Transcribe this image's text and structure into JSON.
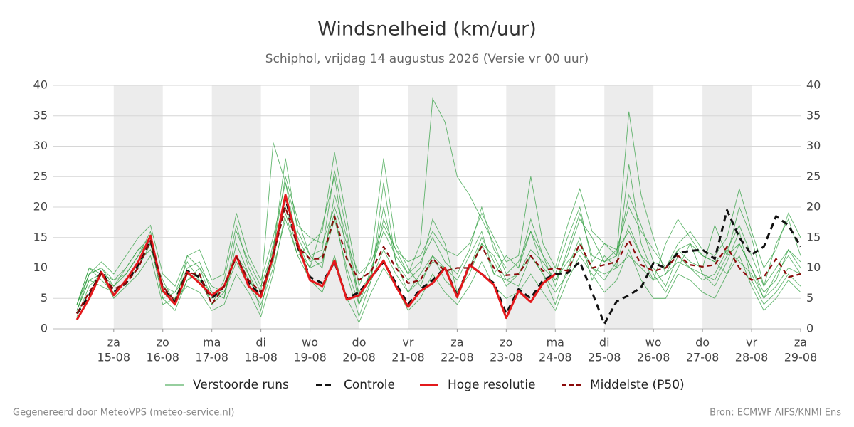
{
  "chart_data": {
    "type": "line",
    "title": "Windsnelheid (km/uur)",
    "subtitle": "Schiphol, vrijdag 14 augustus 2026 (Versie vr 00 uur)",
    "footer_left": "Gegenereerd door MeteoVPS (meteo-service.nl)",
    "footer_right": "Bron: ECMWF AIFS/KNMI Ens",
    "x": [
      14.25,
      14.5,
      14.75,
      15,
      15.25,
      15.5,
      15.75,
      16,
      16.25,
      16.5,
      16.75,
      17,
      17.25,
      17.5,
      17.75,
      18,
      18.25,
      18.5,
      18.75,
      19,
      19.25,
      19.5,
      19.75,
      20,
      20.25,
      20.5,
      20.75,
      21,
      21.25,
      21.5,
      21.75,
      22,
      22.25,
      22.5,
      22.75,
      23,
      23.25,
      23.5,
      23.75,
      24,
      24.25,
      24.5,
      24.75,
      25,
      25.25,
      25.5,
      25.75,
      26,
      26.25,
      26.5,
      26.75,
      27,
      27.25,
      27.5,
      27.75,
      28,
      28.25,
      28.5,
      28.75,
      29
    ],
    "xlim": [
      13.77,
      29
    ],
    "xticks": [
      {
        "value": 15,
        "label": "15-08",
        "weekday": "za"
      },
      {
        "value": 16,
        "label": "16-08",
        "weekday": "zo"
      },
      {
        "value": 17,
        "label": "17-08",
        "weekday": "ma"
      },
      {
        "value": 18,
        "label": "18-08",
        "weekday": "di"
      },
      {
        "value": 19,
        "label": "19-08",
        "weekday": "wo"
      },
      {
        "value": 20,
        "label": "20-08",
        "weekday": "do"
      },
      {
        "value": 21,
        "label": "21-08",
        "weekday": "vr"
      },
      {
        "value": 22,
        "label": "22-08",
        "weekday": "za"
      },
      {
        "value": 23,
        "label": "23-08",
        "weekday": "zo"
      },
      {
        "value": 24,
        "label": "24-08",
        "weekday": "ma"
      },
      {
        "value": 25,
        "label": "25-08",
        "weekday": "di"
      },
      {
        "value": 26,
        "label": "26-08",
        "weekday": "wo"
      },
      {
        "value": 27,
        "label": "27-08",
        "weekday": "do"
      },
      {
        "value": 28,
        "label": "28-08",
        "weekday": "vr"
      },
      {
        "value": 29,
        "label": "29-08",
        "weekday": "za"
      }
    ],
    "ylim": [
      0,
      40
    ],
    "yticks": [
      0,
      5,
      10,
      15,
      20,
      25,
      30,
      35,
      40
    ],
    "grid": true,
    "series": [
      {
        "name": "Verstoorde runs",
        "color": "#2e9e3e",
        "members": [
          [
            4,
            9,
            10,
            8,
            9,
            12,
            16,
            6,
            5,
            10,
            11,
            6,
            5,
            14,
            9,
            3,
            13,
            28,
            16,
            12,
            10,
            22,
            15,
            4,
            10,
            16,
            12,
            9,
            14,
            37.8,
            34,
            25,
            22,
            18,
            14,
            9,
            11,
            16,
            10,
            8,
            12,
            18,
            15,
            11,
            13,
            16,
            12,
            8,
            14,
            18,
            15,
            12,
            11,
            9,
            14,
            10,
            6,
            8,
            13,
            10
          ],
          [
            3,
            8,
            9,
            7,
            10,
            13,
            14,
            5,
            6,
            11,
            8,
            4,
            8,
            17,
            10,
            6,
            30.6,
            24,
            14,
            10,
            17,
            25,
            12,
            6,
            9,
            20,
            11,
            6,
            9,
            12,
            10,
            8,
            12,
            16,
            9,
            12,
            10,
            18,
            12,
            9,
            15,
            20,
            11,
            14,
            12,
            35.7,
            22,
            15,
            9,
            13,
            11,
            10,
            17,
            12,
            20,
            15,
            7,
            14,
            18,
            12
          ],
          [
            4,
            10,
            8,
            6,
            8,
            11,
            13,
            8,
            4,
            8,
            10,
            7,
            6,
            11,
            7,
            4,
            10,
            18,
            12,
            14,
            16,
            29,
            18,
            7,
            12,
            28,
            14,
            10,
            7,
            12,
            8,
            6,
            9,
            14,
            12,
            8,
            7,
            12,
            9,
            4,
            10,
            15,
            8,
            12,
            10,
            27,
            14,
            9,
            6,
            10,
            14,
            9,
            7,
            11,
            16,
            8,
            4,
            6,
            9,
            7
          ],
          [
            2,
            7,
            9,
            5,
            7,
            9,
            12,
            4,
            5,
            7,
            6,
            3,
            4,
            9,
            6,
            2,
            9,
            19,
            12,
            8,
            6,
            12,
            5,
            1,
            6,
            10,
            7,
            3,
            5,
            9,
            6,
            4,
            7,
            11,
            7,
            5,
            6,
            9,
            6,
            3,
            8,
            12,
            9,
            6,
            8,
            13,
            8,
            5,
            5,
            9,
            8,
            6,
            5,
            9,
            12,
            7,
            3,
            5,
            8,
            6
          ],
          [
            4,
            9,
            11,
            9,
            12,
            15,
            17,
            9,
            7,
            12,
            13,
            8,
            9,
            19,
            12,
            8,
            15,
            24,
            17,
            15,
            14,
            20,
            14,
            9,
            11,
            17,
            13,
            11,
            12,
            16,
            13,
            12,
            14,
            19,
            15,
            11,
            12,
            25,
            14,
            10,
            17,
            23,
            16,
            14,
            13,
            20,
            16,
            13,
            10,
            14,
            16,
            13,
            12,
            15,
            23,
            16,
            10,
            13,
            19,
            15
          ],
          [
            3,
            9,
            10,
            7,
            9,
            12,
            15,
            6,
            4,
            12,
            10,
            5,
            7,
            12,
            9,
            5,
            11,
            22,
            15,
            11,
            12,
            19,
            9,
            2,
            8,
            24,
            11,
            8,
            10,
            18,
            14,
            6,
            10,
            15,
            11,
            7,
            9,
            13,
            11,
            8,
            11,
            13,
            10,
            8,
            11,
            17,
            12,
            10,
            7,
            12,
            10,
            8,
            9,
            13,
            11,
            9,
            5,
            9,
            12,
            9
          ],
          [
            3,
            8,
            7,
            6,
            8,
            10,
            14,
            5,
            3,
            8,
            9,
            4,
            6,
            12,
            8,
            5,
            14,
            20,
            13,
            10,
            11,
            18,
            10,
            4,
            8,
            13,
            9,
            6,
            8,
            11,
            10,
            5,
            10,
            14,
            9,
            8,
            9,
            12,
            9,
            6,
            9,
            14,
            10,
            9,
            10,
            12,
            10,
            8,
            9,
            11,
            10,
            9,
            8,
            12,
            14,
            10,
            5,
            7,
            10,
            9
          ],
          [
            4,
            10,
            9,
            8,
            10,
            13,
            15,
            7,
            6,
            9,
            8,
            6,
            5,
            16,
            11,
            7,
            13,
            25,
            18,
            12,
            13,
            26,
            16,
            5,
            9,
            18,
            13,
            9,
            11,
            15,
            11,
            9,
            13,
            20,
            13,
            10,
            10,
            16,
            12,
            7,
            13,
            19,
            12,
            11,
            12,
            22,
            17,
            11,
            10,
            13,
            14,
            12,
            11,
            13,
            17,
            12,
            7,
            10,
            13,
            11
          ]
        ]
      },
      {
        "name": "Controle",
        "color": "#111111",
        "dashed": true,
        "values": [
          2.5,
          5.5,
          9.5,
          6,
          7.5,
          10.5,
          14.5,
          6.5,
          4.5,
          9.5,
          8.5,
          5,
          7,
          12,
          7.5,
          5.5,
          12,
          21.5,
          13.5,
          8.5,
          7.5,
          11,
          5,
          6,
          8.5,
          11,
          7.5,
          4,
          6.5,
          8,
          10,
          5.5,
          10.5,
          9,
          7.5,
          2.5,
          6.5,
          5,
          8,
          9,
          9.2,
          11,
          6,
          0.8,
          4.5,
          5.5,
          6.8,
          10.8,
          10,
          12.5,
          12.8,
          13,
          11.5,
          19.5,
          15,
          12.2,
          13.5,
          18.5,
          17,
          13.5
        ]
      },
      {
        "name": "Hoge resolutie",
        "color": "#e3191c",
        "values": [
          1.5,
          5,
          9.3,
          5.5,
          8,
          11,
          15.3,
          6.3,
          4,
          9.3,
          7.5,
          5.5,
          7,
          12,
          7,
          5.2,
          12,
          22,
          14,
          8,
          7,
          11.2,
          4.8,
          5.5,
          8.5,
          11.2,
          7,
          3.6,
          6.2,
          7.5,
          10,
          5.2,
          10.5,
          9,
          7.2,
          1.8,
          6.2,
          4.4,
          7.5,
          9,
          null,
          null,
          null,
          null,
          null,
          null,
          null,
          null,
          null,
          null,
          null,
          null,
          null,
          null,
          null,
          null,
          null,
          null,
          null,
          null
        ]
      },
      {
        "name": "Middelste (P50)",
        "color": "#8b0a0a",
        "dashed": true,
        "values": [
          2.5,
          6,
          9,
          6.5,
          7.5,
          10,
          14.5,
          7,
          4.5,
          9.2,
          9,
          4,
          7,
          11.8,
          8,
          6,
          12,
          20,
          13.5,
          11.5,
          11.5,
          18.5,
          11.5,
          8,
          9.5,
          13.5,
          10,
          7.5,
          8,
          11.5,
          9.5,
          10,
          10,
          13.5,
          10,
          8.8,
          9,
          12,
          9.5,
          10,
          9.5,
          14,
          10,
          10.5,
          11,
          14.5,
          10.5,
          9.5,
          10,
          12,
          10.5,
          10.2,
          10.5,
          13.5,
          10,
          8,
          8.5,
          11.5,
          8.5,
          9
        ]
      }
    ]
  }
}
